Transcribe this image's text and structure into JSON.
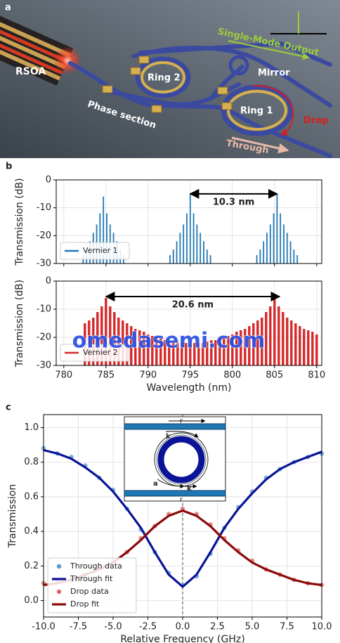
{
  "panel_a": {
    "label": "a",
    "texts": {
      "rsoa": "RSOA",
      "ring2": "Ring 2",
      "phase": "Phase section",
      "mirror": "Mirror",
      "output": "Single-Mode Output",
      "ring1": "Ring 1",
      "drop": "Drop",
      "through": "Through"
    }
  },
  "chart_data": [
    {
      "type": "stem",
      "label": "b",
      "ylabel": "Transmission (dB)",
      "xlim": [
        779.1,
        810.6
      ],
      "ylim": [
        -30,
        0
      ],
      "xticks": [
        780,
        785,
        790,
        795,
        800,
        805,
        810
      ],
      "yticks": [
        0,
        -10,
        -20,
        -30
      ],
      "grid": true,
      "legend": "lower left",
      "series": [
        {
          "name": "Vernier 1",
          "color": "#1f77b4",
          "x": [
            782.3,
            782.7,
            783.1,
            783.5,
            783.9,
            784.3,
            784.7,
            785.1,
            785.5,
            785.9,
            786.3,
            786.7,
            787.1,
            792.6,
            793.0,
            793.4,
            793.8,
            794.2,
            794.6,
            795.0,
            795.4,
            795.8,
            796.2,
            796.6,
            797.0,
            797.4,
            802.9,
            803.3,
            803.7,
            804.1,
            804.5,
            804.9,
            805.3,
            805.7,
            806.1,
            806.5,
            806.9,
            807.3,
            807.7
          ],
          "values": [
            -27,
            -25,
            -22,
            -19,
            -16,
            -12,
            -6,
            -12,
            -16,
            -19,
            -22,
            -25,
            -27,
            -27,
            -25,
            -22,
            -19,
            -16,
            -12,
            -5,
            -12,
            -16,
            -19,
            -22,
            -25,
            -27,
            -27,
            -25,
            -22,
            -19,
            -16,
            -12,
            -5,
            -12,
            -16,
            -19,
            -22,
            -25,
            -27
          ]
        }
      ],
      "annotation": {
        "text": "10.3 nm",
        "x_from": 795.0,
        "x_to": 805.3,
        "y": -5
      }
    },
    {
      "type": "stem",
      "xlabel": "Wavelength (nm)",
      "ylabel": "Transmission (dB)",
      "xlim": [
        779.1,
        810.6
      ],
      "ylim": [
        -30,
        0
      ],
      "xticks": [
        780,
        785,
        790,
        795,
        800,
        805,
        810
      ],
      "yticks": [
        0,
        -10,
        -20,
        -30
      ],
      "grid": true,
      "legend": "lower left",
      "series": [
        {
          "name": "Vernier 2",
          "color": "#d62728",
          "x": [
            782.5,
            783,
            783.5,
            784,
            784.5,
            785,
            785.5,
            786,
            786.5,
            787,
            787.5,
            788,
            788.5,
            789,
            789.5,
            790,
            790.5,
            791,
            791.5,
            792,
            792.5,
            793,
            793.5,
            794,
            794.5,
            795,
            795.5,
            796,
            796.5,
            797,
            797.5,
            798,
            798.5,
            799,
            799.5,
            800,
            800.5,
            801,
            801.5,
            802,
            802.5,
            803,
            803.5,
            804,
            804.5,
            805,
            805.5,
            806,
            806.5,
            807,
            807.5,
            808,
            808.5,
            809,
            809.5,
            810
          ],
          "values": [
            -15,
            -14,
            -13,
            -11,
            -9,
            -6,
            -9,
            -11,
            -13,
            -14,
            -15,
            -16,
            -17,
            -17.5,
            -18,
            -19,
            -19.5,
            -20,
            -20.5,
            -21,
            -21,
            -21.5,
            -22,
            -22,
            -22,
            -22.5,
            -22,
            -22,
            -22,
            -21.5,
            -21,
            -21,
            -20.5,
            -20,
            -19.5,
            -19,
            -18,
            -17.5,
            -17,
            -16,
            -15,
            -14,
            -13,
            -11,
            -9,
            -6.5,
            -9,
            -11,
            -13,
            -14,
            -15,
            -16,
            -17,
            -17.5,
            -18,
            -19
          ]
        }
      ],
      "annotation": {
        "text": "20.6 nm",
        "x_from": 785.0,
        "x_to": 805.6,
        "y": -5.5
      }
    },
    {
      "type": "line",
      "label": "c",
      "xlabel": "Relative Frequency (GHz)",
      "ylabel": "Transmission",
      "xlim": [
        -10,
        10
      ],
      "ylim": [
        -0.095,
        1.075
      ],
      "xticks": [
        {
          "value": -10,
          "label": "-10.0"
        },
        -7.5,
        {
          "value": -5,
          "label": "-5.0"
        },
        -2.5,
        {
          "value": 0,
          "label": "0.0"
        },
        2.5,
        {
          "value": 5,
          "label": "5.0"
        },
        7.5,
        {
          "value": 10,
          "label": "10.0"
        }
      ],
      "yticks": [
        {
          "value": 0,
          "label": "0.0"
        },
        0.2,
        0.4,
        0.6,
        0.8,
        {
          "value": 1,
          "label": "1.0"
        }
      ],
      "grid": true,
      "legend": "lower left",
      "vline": 0,
      "x": [
        -10,
        -9,
        -8,
        -7,
        -6,
        -5,
        -4,
        -3,
        -2,
        -1,
        0,
        1,
        2,
        3,
        4,
        5,
        6,
        7,
        8,
        9,
        10
      ],
      "series": [
        {
          "name": "Through data",
          "style": "dots",
          "color": "#5b9bd5",
          "values": [
            0.88,
            0.85,
            0.83,
            0.78,
            0.71,
            0.64,
            0.53,
            0.41,
            0.28,
            0.16,
            0.09,
            0.14,
            0.27,
            0.42,
            0.54,
            0.63,
            0.71,
            0.76,
            0.8,
            0.83,
            0.85
          ]
        },
        {
          "name": "Through fit",
          "style": "line",
          "color": "#0a1496",
          "values": [
            0.87,
            0.85,
            0.82,
            0.77,
            0.71,
            0.63,
            0.53,
            0.42,
            0.28,
            0.15,
            0.08,
            0.15,
            0.28,
            0.42,
            0.53,
            0.62,
            0.7,
            0.76,
            0.8,
            0.83,
            0.86
          ]
        },
        {
          "name": "Drop data",
          "style": "dots",
          "color": "#e06666",
          "values": [
            0.1,
            0.11,
            0.12,
            0.15,
            0.19,
            0.23,
            0.28,
            0.36,
            0.43,
            0.5,
            0.53,
            0.5,
            0.44,
            0.36,
            0.29,
            0.23,
            0.18,
            0.15,
            0.12,
            0.1,
            0.09
          ]
        },
        {
          "name": "Drop fit",
          "style": "line",
          "color": "#8b0a0a",
          "values": [
            0.09,
            0.1,
            0.12,
            0.15,
            0.18,
            0.22,
            0.28,
            0.35,
            0.43,
            0.49,
            0.52,
            0.49,
            0.43,
            0.35,
            0.28,
            0.22,
            0.18,
            0.15,
            0.12,
            0.1,
            0.09
          ]
        }
      ],
      "inset_labels": [
        "r",
        "k",
        "a",
        "k",
        "r"
      ]
    }
  ],
  "watermark": "omedasemi.com"
}
